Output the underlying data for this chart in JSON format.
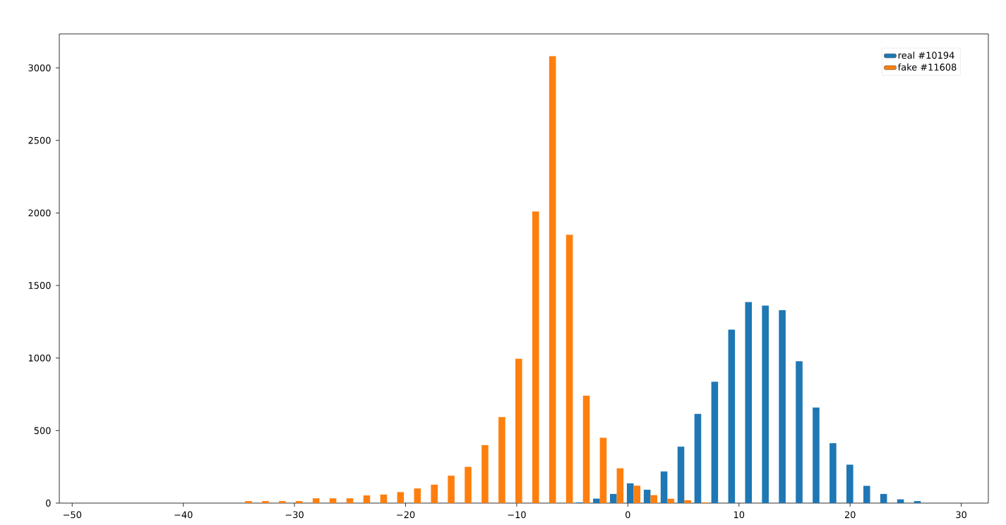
{
  "chart_data": {
    "type": "histogram",
    "bins": [
      -47.36,
      -45.84,
      -44.32,
      -42.8,
      -41.28,
      -39.76,
      -38.24,
      -36.72,
      -35.2,
      -33.68,
      -32.16,
      -30.64,
      -29.12,
      -27.6,
      -26.08,
      -24.56,
      -23.04,
      -21.52,
      -20.0,
      -18.48,
      -16.96,
      -15.44,
      -13.92,
      -12.4,
      -10.88,
      -9.36,
      -7.84,
      -6.32,
      -4.8,
      -3.28,
      -1.76,
      -0.24,
      1.28,
      2.8,
      4.32,
      5.84,
      7.36,
      8.88,
      10.4,
      11.92,
      13.44,
      14.96,
      16.48,
      18.0,
      19.52,
      21.04,
      22.56,
      24.08,
      25.6,
      27.12,
      28.64
    ],
    "series": [
      {
        "name": "real #10194",
        "color": "#1f77b4",
        "values": [
          0,
          0,
          0,
          0,
          0,
          0,
          0,
          0,
          0,
          0,
          0,
          0,
          0,
          0,
          0,
          0,
          0,
          0,
          0,
          0,
          0,
          0,
          0,
          0,
          0,
          0,
          0,
          0,
          5,
          31,
          63,
          136,
          92,
          218,
          389,
          615,
          837,
          1196,
          1386,
          1361,
          1330,
          978,
          659,
          413,
          265,
          119,
          63,
          26,
          14,
          0
        ]
      },
      {
        "name": "fake #11608",
        "color": "#ff7f0e",
        "values": [
          0,
          0,
          0,
          0,
          0,
          0,
          0,
          0,
          14,
          14,
          14,
          14,
          33,
          33,
          33,
          53,
          59,
          76,
          101,
          127,
          189,
          250,
          400,
          593,
          995,
          2010,
          3080,
          1850,
          740,
          450,
          240,
          120,
          55,
          30,
          20,
          5,
          0,
          0,
          0,
          0,
          0,
          0,
          0,
          0,
          0,
          0,
          0,
          0,
          0,
          0
        ]
      }
    ],
    "xlim": [
      -51.16,
      32.44
    ],
    "ylim": [
      0,
      3234
    ],
    "xticks": [
      {
        "value": -50,
        "label": "−50"
      },
      {
        "value": -40,
        "label": "−40"
      },
      {
        "value": -30,
        "label": "−30"
      },
      {
        "value": -20,
        "label": "−20"
      },
      {
        "value": -10,
        "label": "−10"
      },
      0,
      10,
      20,
      30
    ],
    "yticks": [
      0,
      500,
      1000,
      1500,
      2000,
      2500,
      3000
    ],
    "legend": "top right",
    "grid": false
  }
}
